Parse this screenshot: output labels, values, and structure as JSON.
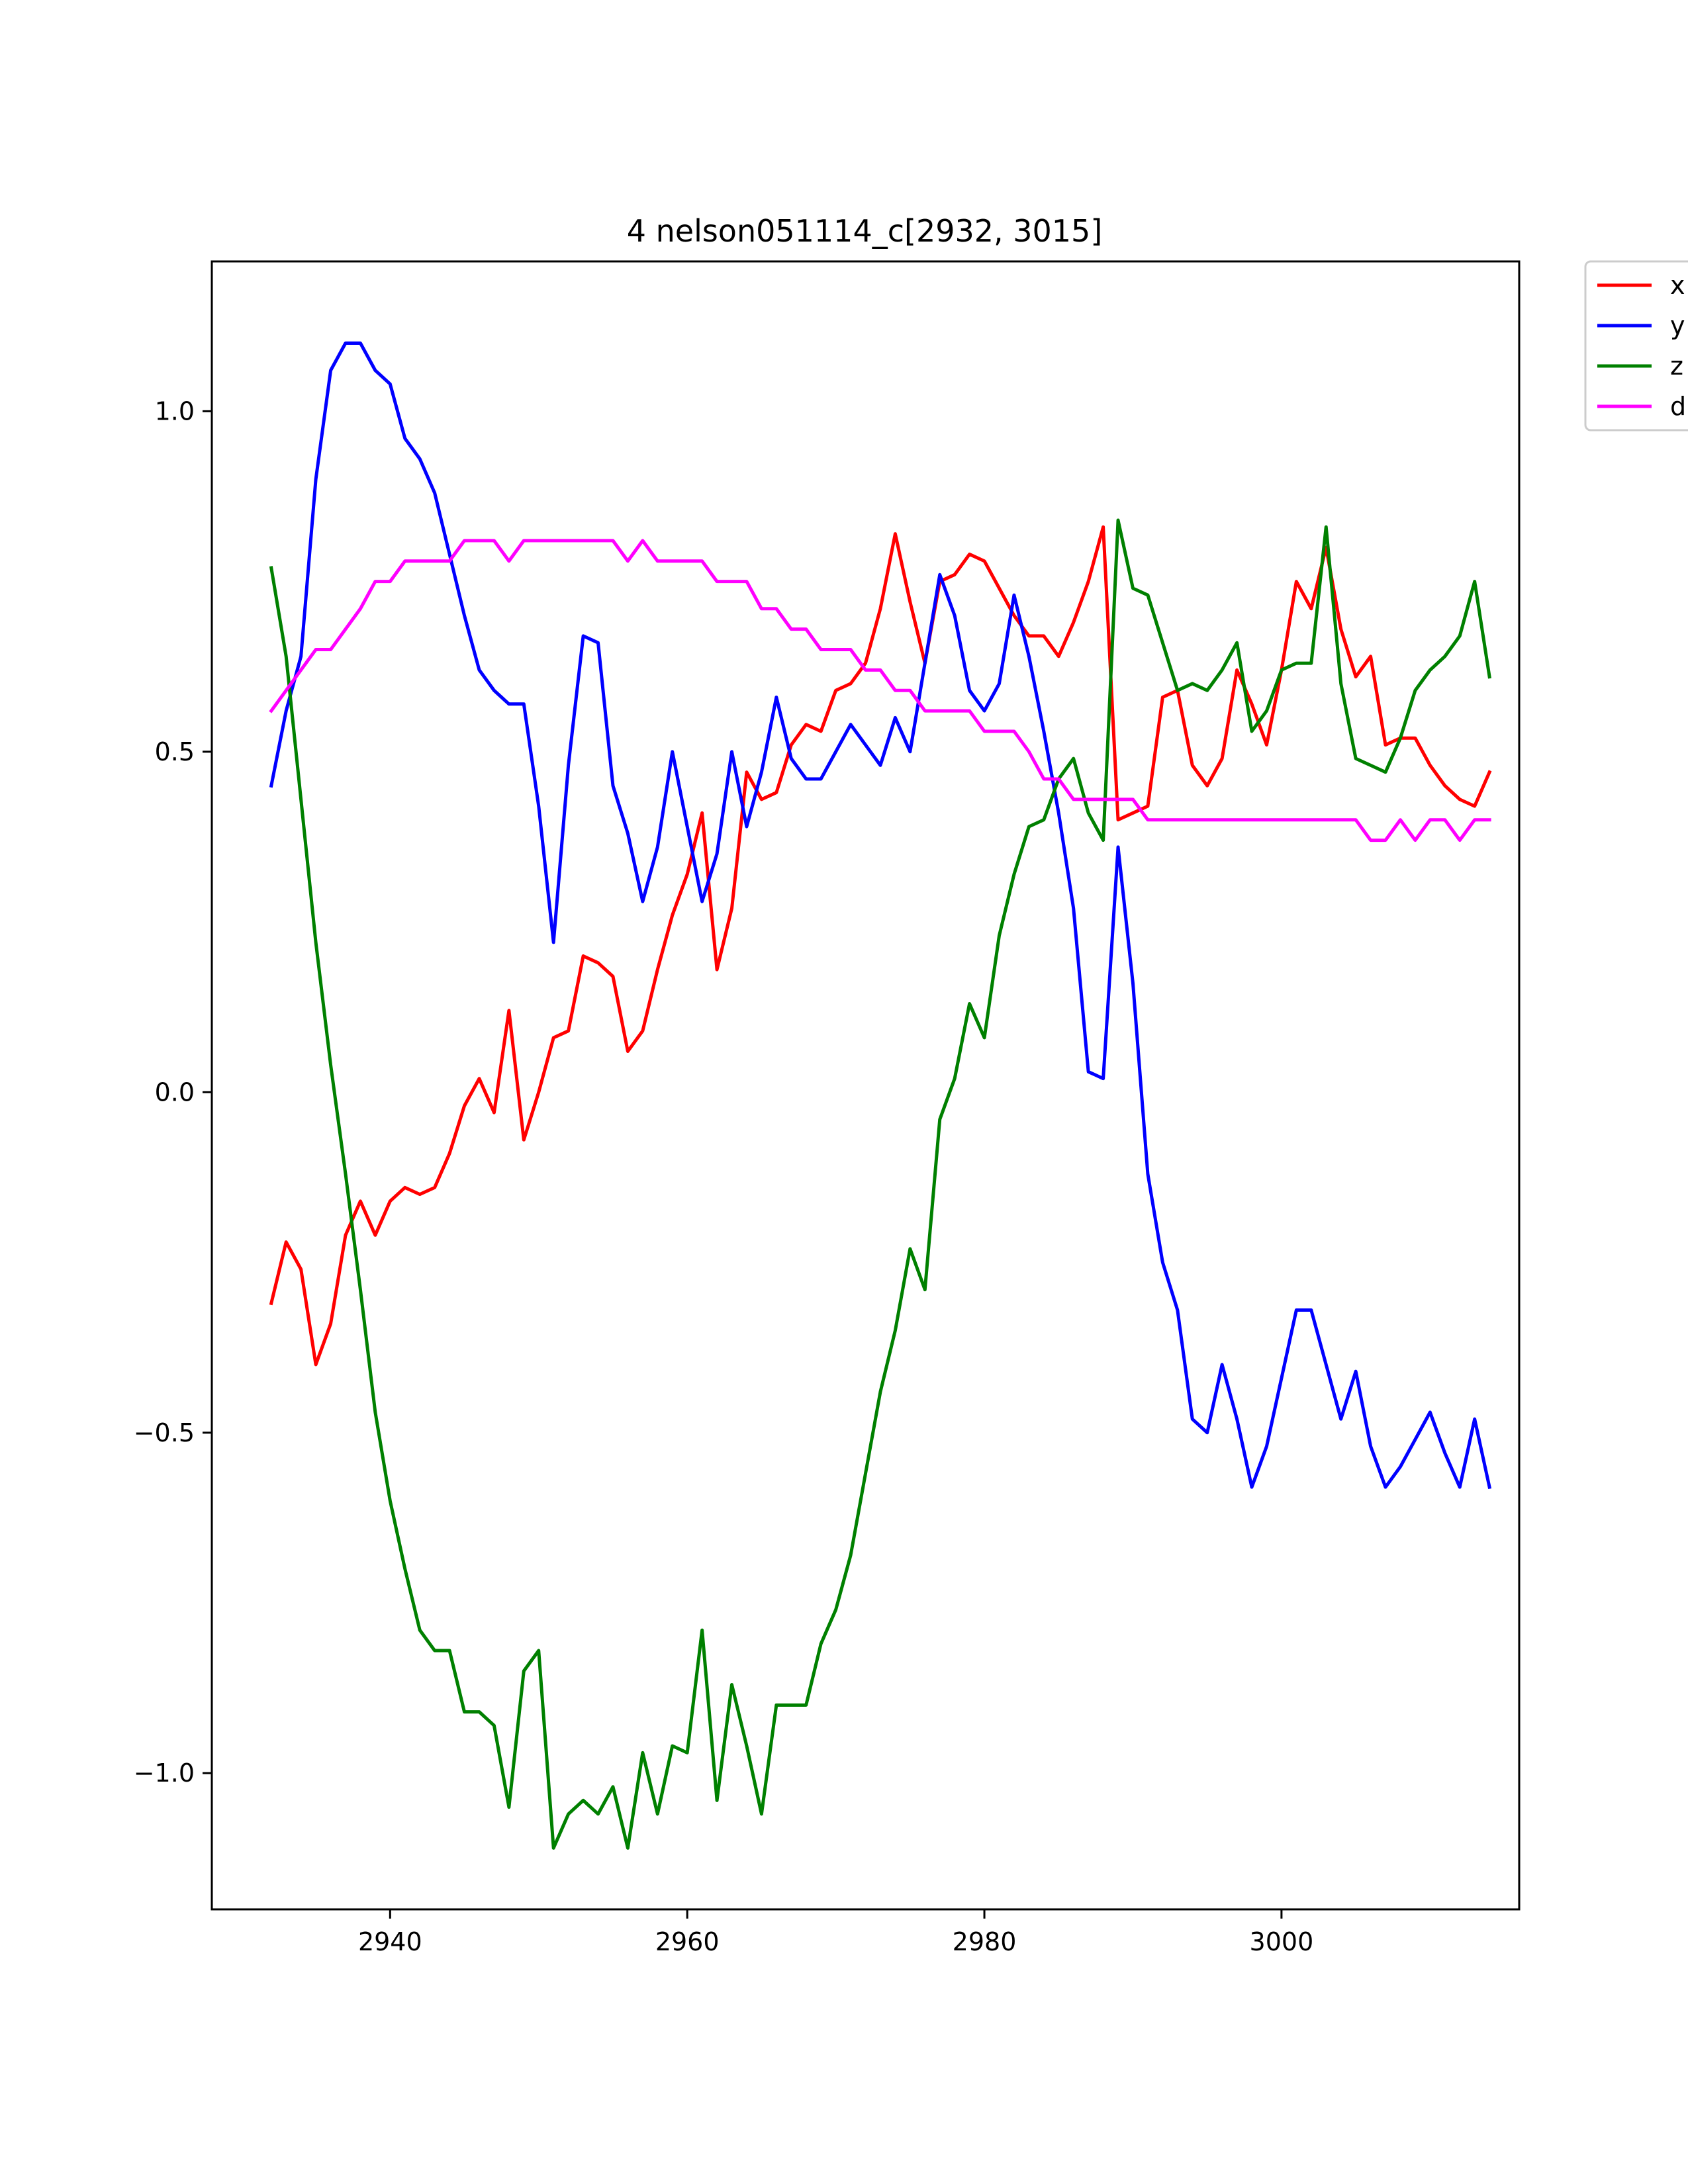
{
  "chart_data": {
    "type": "line",
    "title": "4 nelson051114_c[2932, 3015]",
    "xlabel": "",
    "ylabel": "",
    "xlim": [
      2928,
      3016
    ],
    "ylim": [
      -1.2,
      1.22
    ],
    "x_ticks": [
      2940,
      2960,
      2980,
      3000
    ],
    "x_tick_labels": [
      "2940",
      "2960",
      "2980",
      "3000"
    ],
    "y_ticks": [
      1.0,
      0.5,
      0.0,
      -0.5,
      -1.0
    ],
    "y_tick_labels": [
      "1.0",
      "0.5",
      "0.0",
      "−0.5",
      "−1.0"
    ],
    "grid": false,
    "legend_position": "outside-top-right",
    "x_start": 2932,
    "series": [
      {
        "name": "x",
        "color": "#ff0000",
        "values": [
          -0.31,
          -0.22,
          -0.26,
          -0.4,
          -0.34,
          -0.21,
          -0.16,
          -0.21,
          -0.16,
          -0.14,
          -0.15,
          -0.14,
          -0.09,
          -0.02,
          0.02,
          -0.03,
          0.12,
          -0.07,
          0.0,
          0.08,
          0.09,
          0.2,
          0.19,
          0.17,
          0.06,
          0.09,
          0.18,
          0.26,
          0.32,
          0.41,
          0.18,
          0.27,
          0.47,
          0.43,
          0.44,
          0.51,
          0.54,
          0.53,
          0.59,
          0.6,
          0.63,
          0.71,
          0.82,
          0.72,
          0.63,
          0.75,
          0.76,
          0.79,
          0.78,
          0.74,
          0.7,
          0.67,
          0.67,
          0.64,
          0.69,
          0.75,
          0.83,
          0.4,
          0.41,
          0.42,
          0.58,
          0.59,
          0.48,
          0.45,
          0.49,
          0.62,
          0.57,
          0.51,
          0.62,
          0.75,
          0.71,
          0.8,
          0.68,
          0.61,
          0.64,
          0.51,
          0.52,
          0.52,
          0.48,
          0.45,
          0.43,
          0.42,
          0.47
        ]
      },
      {
        "name": "y",
        "color": "#0000ff",
        "values": [
          0.45,
          0.56,
          0.64,
          0.9,
          1.06,
          1.1,
          1.1,
          1.06,
          1.04,
          0.96,
          0.93,
          0.88,
          0.79,
          0.7,
          0.62,
          0.59,
          0.57,
          0.57,
          0.42,
          0.22,
          0.48,
          0.67,
          0.66,
          0.45,
          0.38,
          0.28,
          0.36,
          0.5,
          0.39,
          0.28,
          0.35,
          0.5,
          0.39,
          0.47,
          0.58,
          0.49,
          0.46,
          0.46,
          0.5,
          0.54,
          0.51,
          0.48,
          0.55,
          0.5,
          0.63,
          0.76,
          0.7,
          0.59,
          0.56,
          0.6,
          0.73,
          0.64,
          0.53,
          0.41,
          0.27,
          0.03,
          0.02,
          0.36,
          0.16,
          -0.12,
          -0.25,
          -0.32,
          -0.48,
          -0.5,
          -0.4,
          -0.48,
          -0.58,
          -0.52,
          -0.42,
          -0.32,
          -0.32,
          -0.4,
          -0.48,
          -0.41,
          -0.52,
          -0.58,
          -0.55,
          -0.51,
          -0.47,
          -0.53,
          -0.58,
          -0.48,
          -0.58
        ]
      },
      {
        "name": "z",
        "color": "#008000",
        "values": [
          0.77,
          0.64,
          0.43,
          0.22,
          0.04,
          -0.12,
          -0.29,
          -0.47,
          -0.6,
          -0.7,
          -0.79,
          -0.82,
          -0.82,
          -0.91,
          -0.91,
          -0.93,
          -1.05,
          -0.85,
          -0.82,
          -1.11,
          -1.06,
          -1.04,
          -1.06,
          -1.02,
          -1.11,
          -0.97,
          -1.06,
          -0.96,
          -0.97,
          -0.79,
          -1.04,
          -0.87,
          -0.96,
          -1.06,
          -0.9,
          -0.9,
          -0.9,
          -0.81,
          -0.76,
          -0.68,
          -0.56,
          -0.44,
          -0.35,
          -0.23,
          -0.29,
          -0.04,
          0.02,
          0.13,
          0.08,
          0.23,
          0.32,
          0.39,
          0.4,
          0.46,
          0.49,
          0.41,
          0.37,
          0.84,
          0.74,
          0.73,
          0.66,
          0.59,
          0.6,
          0.59,
          0.62,
          0.66,
          0.53,
          0.56,
          0.62,
          0.63,
          0.63,
          0.83,
          0.6,
          0.49,
          0.48,
          0.47,
          0.52,
          0.59,
          0.62,
          0.64,
          0.67,
          0.75,
          0.61
        ]
      },
      {
        "name": "d",
        "color": "#ff00ff",
        "values": [
          0.56,
          0.59,
          0.62,
          0.65,
          0.65,
          0.68,
          0.71,
          0.75,
          0.75,
          0.78,
          0.78,
          0.78,
          0.78,
          0.81,
          0.81,
          0.81,
          0.78,
          0.81,
          0.81,
          0.81,
          0.81,
          0.81,
          0.81,
          0.81,
          0.78,
          0.81,
          0.78,
          0.78,
          0.78,
          0.78,
          0.75,
          0.75,
          0.75,
          0.71,
          0.71,
          0.68,
          0.68,
          0.65,
          0.65,
          0.65,
          0.62,
          0.62,
          0.59,
          0.59,
          0.56,
          0.56,
          0.56,
          0.56,
          0.53,
          0.53,
          0.53,
          0.5,
          0.46,
          0.46,
          0.43,
          0.43,
          0.43,
          0.43,
          0.43,
          0.4,
          0.4,
          0.4,
          0.4,
          0.4,
          0.4,
          0.4,
          0.4,
          0.4,
          0.4,
          0.4,
          0.4,
          0.4,
          0.4,
          0.4,
          0.37,
          0.37,
          0.4,
          0.37,
          0.4,
          0.4,
          0.37,
          0.4,
          0.4
        ]
      }
    ]
  }
}
